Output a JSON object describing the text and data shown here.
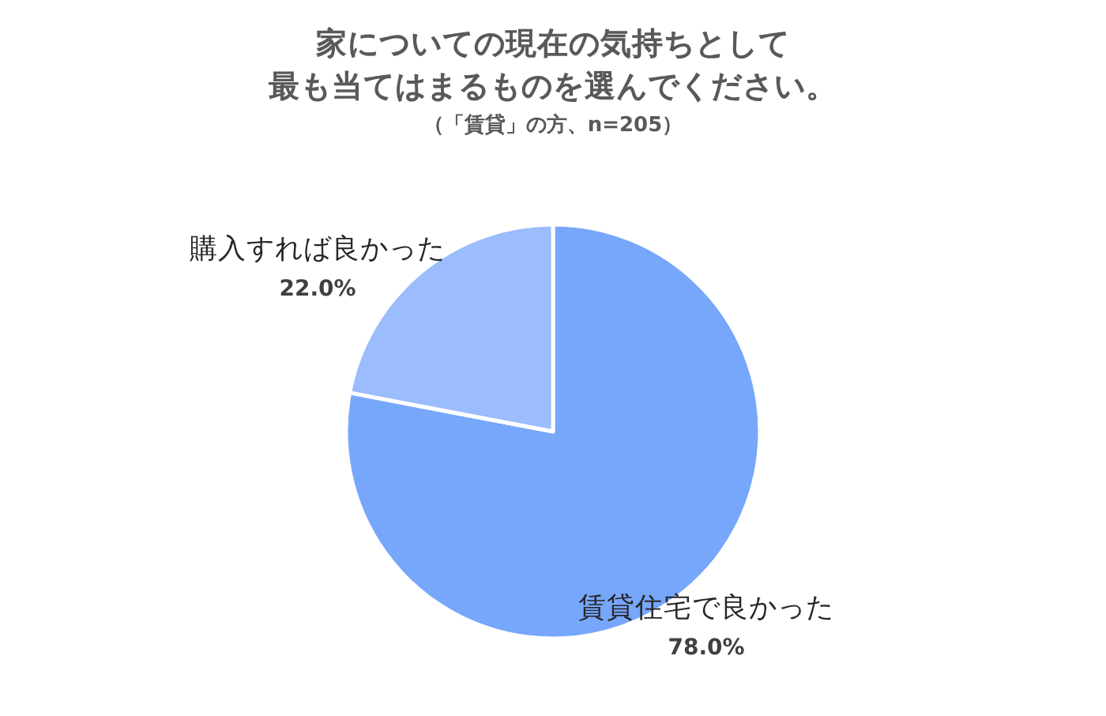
{
  "chart_data": {
    "type": "pie",
    "title": "家についての現在の気持ちとして最も当てはまるものを選んでください。",
    "subtitle": "（「賃貸」の方、n=205）",
    "categories": [
      "賃貸住宅で良かった",
      "購入すれば良かった"
    ],
    "values": [
      78.0,
      22.0
    ],
    "colors": [
      "#77a7fb",
      "#9bbdfd"
    ],
    "value_labels": [
      "78.0%",
      "22.0%"
    ],
    "legend": false
  }
}
